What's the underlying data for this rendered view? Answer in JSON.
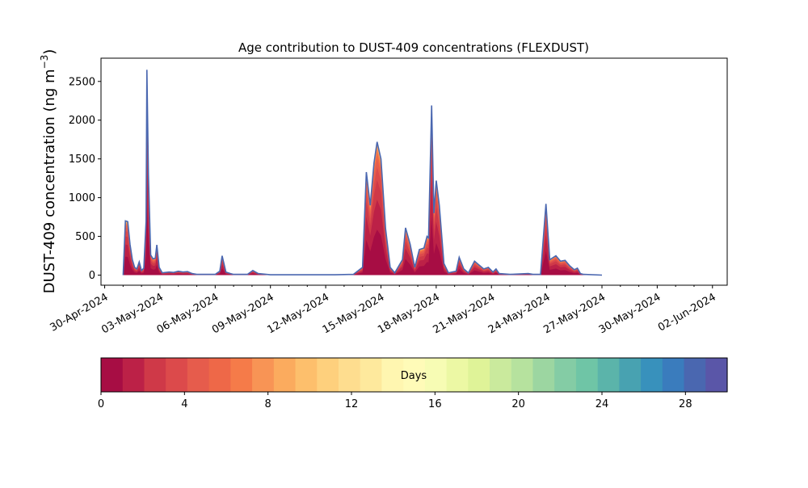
{
  "chart_data": {
    "type": "area",
    "title": "Age contribution to DUST-409 concentrations (FLEXDUST)",
    "ylabel_main": "DUST-409 concentration (ng m",
    "ylabel_sup": "−3",
    "ylabel_close": ")",
    "xlabel": "",
    "x_range_days": [
      -0.2,
      33.8
    ],
    "x_ticks": [
      "30-Apr-2024",
      "03-May-2024",
      "06-May-2024",
      "09-May-2024",
      "12-May-2024",
      "15-May-2024",
      "18-May-2024",
      "21-May-2024",
      "24-May-2024",
      "27-May-2024",
      "30-May-2024",
      "02-Jun-2024"
    ],
    "y_ticks": [
      "0",
      "500",
      "1000",
      "1500",
      "2000",
      "2500"
    ],
    "ylim": [
      -130,
      2800
    ],
    "grid": false,
    "total_series_points": [
      [
        "2024-05-01 00:00",
        0
      ],
      [
        "2024-05-01 03:00",
        700
      ],
      [
        "2024-05-01 06:00",
        690
      ],
      [
        "2024-05-01 09:00",
        400
      ],
      [
        "2024-05-01 12:00",
        200
      ],
      [
        "2024-05-01 15:00",
        100
      ],
      [
        "2024-05-01 18:00",
        80
      ],
      [
        "2024-05-01 21:00",
        170
      ],
      [
        "2024-05-02 00:00",
        60
      ],
      [
        "2024-05-02 03:00",
        90
      ],
      [
        "2024-05-02 06:00",
        700
      ],
      [
        "2024-05-02 07:00",
        2650
      ],
      [
        "2024-05-02 09:00",
        1300
      ],
      [
        "2024-05-02 12:00",
        260
      ],
      [
        "2024-05-02 15:00",
        210
      ],
      [
        "2024-05-02 18:00",
        220
      ],
      [
        "2024-05-02 20:00",
        390
      ],
      [
        "2024-05-02 23:00",
        100
      ],
      [
        "2024-05-03 03:00",
        30
      ],
      [
        "2024-05-03 12:00",
        40
      ],
      [
        "2024-05-03 18:00",
        35
      ],
      [
        "2024-05-04 00:00",
        50
      ],
      [
        "2024-05-04 06:00",
        40
      ],
      [
        "2024-05-04 12:00",
        45
      ],
      [
        "2024-05-04 18:00",
        20
      ],
      [
        "2024-05-05 00:00",
        10
      ],
      [
        "2024-05-06 00:00",
        10
      ],
      [
        "2024-05-06 06:00",
        50
      ],
      [
        "2024-05-06 09:00",
        250
      ],
      [
        "2024-05-06 14:00",
        40
      ],
      [
        "2024-05-06 20:00",
        20
      ],
      [
        "2024-05-07 00:00",
        10
      ],
      [
        "2024-05-07 18:00",
        10
      ],
      [
        "2024-05-08 01:00",
        60
      ],
      [
        "2024-05-08 08:00",
        20
      ],
      [
        "2024-05-09 00:00",
        5
      ],
      [
        "2024-05-11 00:00",
        5
      ],
      [
        "2024-05-12 12:00",
        5
      ],
      [
        "2024-05-13 12:00",
        10
      ],
      [
        "2024-05-14 00:00",
        100
      ],
      [
        "2024-05-14 05:00",
        1330
      ],
      [
        "2024-05-14 10:00",
        900
      ],
      [
        "2024-05-14 15:00",
        1450
      ],
      [
        "2024-05-14 19:00",
        1720
      ],
      [
        "2024-05-15 00:00",
        1500
      ],
      [
        "2024-05-15 06:00",
        600
      ],
      [
        "2024-05-15 12:00",
        100
      ],
      [
        "2024-05-15 18:00",
        30
      ],
      [
        "2024-05-16 04:00",
        200
      ],
      [
        "2024-05-16 08:00",
        610
      ],
      [
        "2024-05-16 14:00",
        400
      ],
      [
        "2024-05-16 20:00",
        100
      ],
      [
        "2024-05-17 02:00",
        330
      ],
      [
        "2024-05-17 08:00",
        350
      ],
      [
        "2024-05-17 12:00",
        500
      ],
      [
        "2024-05-17 14:00",
        480
      ],
      [
        "2024-05-17 18:00",
        2190
      ],
      [
        "2024-05-17 21:00",
        800
      ],
      [
        "2024-05-18 00:00",
        1220
      ],
      [
        "2024-05-18 04:00",
        900
      ],
      [
        "2024-05-18 10:00",
        150
      ],
      [
        "2024-05-18 16:00",
        30
      ],
      [
        "2024-05-19 02:00",
        50
      ],
      [
        "2024-05-19 06:00",
        230
      ],
      [
        "2024-05-19 12:00",
        80
      ],
      [
        "2024-05-19 18:00",
        30
      ],
      [
        "2024-05-20 02:00",
        180
      ],
      [
        "2024-05-20 08:00",
        130
      ],
      [
        "2024-05-20 14:00",
        80
      ],
      [
        "2024-05-20 20:00",
        100
      ],
      [
        "2024-05-21 02:00",
        40
      ],
      [
        "2024-05-21 06:00",
        80
      ],
      [
        "2024-05-21 10:00",
        20
      ],
      [
        "2024-05-22 00:00",
        10
      ],
      [
        "2024-05-23 00:00",
        20
      ],
      [
        "2024-05-23 06:00",
        10
      ],
      [
        "2024-05-23 16:00",
        10
      ],
      [
        "2024-05-23 23:00",
        920
      ],
      [
        "2024-05-24 04:00",
        200
      ],
      [
        "2024-05-24 12:00",
        250
      ],
      [
        "2024-05-24 18:00",
        180
      ],
      [
        "2024-05-25 00:00",
        190
      ],
      [
        "2024-05-25 06:00",
        120
      ],
      [
        "2024-05-25 12:00",
        70
      ],
      [
        "2024-05-25 16:00",
        90
      ],
      [
        "2024-05-25 20:00",
        20
      ],
      [
        "2024-05-26 00:00",
        10
      ],
      [
        "2024-05-27 00:00",
        0
      ]
    ],
    "colorbar": {
      "label": "Days",
      "range": [
        0,
        30
      ],
      "ticks": [
        "0",
        "4",
        "8",
        "12",
        "16",
        "20",
        "24",
        "28"
      ],
      "colors": [
        "#a70d44",
        "#bc2147",
        "#cf3948",
        "#dc4a4b",
        "#e65c4c",
        "#ee6848",
        "#f57b49",
        "#f89455",
        "#fbab5e",
        "#fdbf6c",
        "#fed07d",
        "#fedd8f",
        "#fee99d",
        "#fff6b0",
        "#fffbb8",
        "#f7fcb4",
        "#ecf8a4",
        "#dff398",
        "#caea9d",
        "#b6e29e",
        "#9cd6a1",
        "#84ccA5",
        "#6fc5a6",
        "#5bb4aa",
        "#48a2b1",
        "#3891bc",
        "#3a7cbd",
        "#4a67b0",
        "#5a56a8"
      ]
    }
  }
}
